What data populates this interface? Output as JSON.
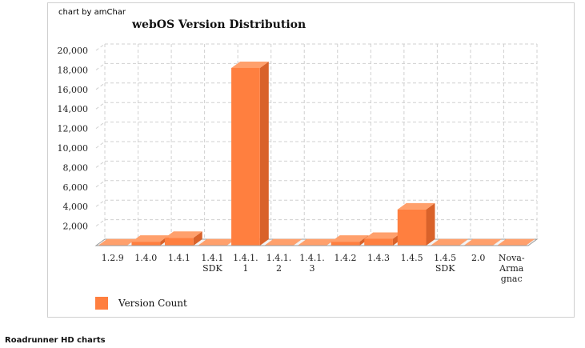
{
  "credit": "chart by amChar",
  "footer_caption": "Roadrunner HD charts",
  "colors": {
    "bar_front": "#ff7f3f",
    "bar_side": "#d9622a",
    "bar_top": "#ffa06c",
    "grid": "#d0d0d0",
    "axis": "#999999"
  },
  "chart_data": {
    "type": "bar",
    "title": "webOS Version Distribution",
    "xlabel": "",
    "ylabel": "",
    "ylim": [
      0,
      20000
    ],
    "yticks": [
      2000,
      4000,
      6000,
      8000,
      10000,
      12000,
      14000,
      16000,
      18000,
      20000
    ],
    "ytick_labels": [
      "2,000",
      "4,000",
      "6,000",
      "8,000",
      "10,000",
      "12,000",
      "14,000",
      "16,000",
      "18,000",
      "20,000"
    ],
    "categories": [
      "1.2.9",
      "1.4.0",
      "1.4.1",
      "1.4.1 SDK",
      "1.4.1.1",
      "1.4.1.2",
      "1.4.1.3",
      "1.4.2",
      "1.4.3",
      "1.4.5",
      "1.4.5 SDK",
      "2.0",
      "Nova-Armagnac"
    ],
    "category_label_lines": [
      [
        "1.2.9"
      ],
      [
        "1.4.0"
      ],
      [
        "1.4.1"
      ],
      [
        "1.4.1",
        "SDK"
      ],
      [
        "1.4.1.",
        "1"
      ],
      [
        "1.4.1.",
        "2"
      ],
      [
        "1.4.1.",
        "3"
      ],
      [
        "1.4.2"
      ],
      [
        "1.4.3"
      ],
      [
        "1.4.5"
      ],
      [
        "1.4.5",
        "SDK"
      ],
      [
        "2.0"
      ],
      [
        "Nova-",
        "Arma",
        "gnac"
      ]
    ],
    "series": [
      {
        "name": "Version Count",
        "values": [
          20,
          400,
          800,
          20,
          18200,
          20,
          20,
          400,
          700,
          3700,
          20,
          20,
          20
        ]
      }
    ],
    "grid": true,
    "legend": "bottom-left"
  }
}
